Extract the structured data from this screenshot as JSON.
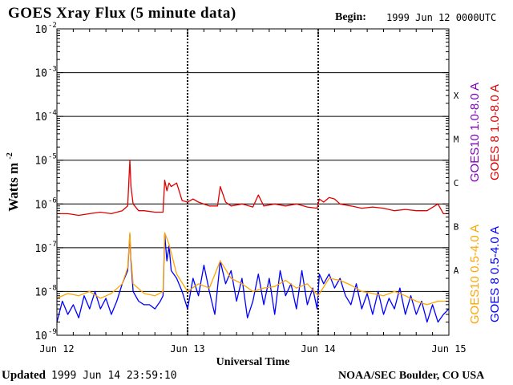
{
  "header": {
    "title": "GOES Xray Flux (5 minute data)",
    "begin_label": "Begin:",
    "begin_value": "1999 Jun 12 0000UTC"
  },
  "footer": {
    "updated_label": "Updated",
    "updated_value": "1999 Jun 14 23:59:10",
    "credit": "NOAA/SEC Boulder, CO USA"
  },
  "chart_data": {
    "type": "line",
    "title": "GOES Xray Flux (5 minute data)",
    "xlabel": "Universal Time",
    "ylabel": "Watts m",
    "ylabel_superscript": "-2",
    "yscale": "log",
    "ylim": [
      1e-09,
      0.01
    ],
    "xlim": [
      0,
      72
    ],
    "x_unit": "hours since 1999 Jun 12 00:00 UTC",
    "x_ticks": [
      {
        "x": 0,
        "label": "Jun 12"
      },
      {
        "x": 24,
        "label": "Jun 13"
      },
      {
        "x": 48,
        "label": "Jun 14"
      },
      {
        "x": 72,
        "label": "Jun 15"
      }
    ],
    "y_ticks": [
      {
        "exp": -9,
        "base": "10",
        "sup": "-9"
      },
      {
        "exp": -8,
        "base": "10",
        "sup": "-8"
      },
      {
        "exp": -7,
        "base": "10",
        "sup": "-7"
      },
      {
        "exp": -6,
        "base": "10",
        "sup": "-6"
      },
      {
        "exp": -5,
        "base": "10",
        "sup": "-5"
      },
      {
        "exp": -4,
        "base": "10",
        "sup": "-4"
      },
      {
        "exp": -3,
        "base": "10",
        "sup": "-3"
      },
      {
        "exp": -2,
        "base": "10",
        "sup": "-2"
      }
    ],
    "flare_classes": [
      {
        "label": "A",
        "exp": -7.5
      },
      {
        "label": "B",
        "exp": -6.5
      },
      {
        "label": "C",
        "exp": -5.5
      },
      {
        "label": "M",
        "exp": -4.5
      },
      {
        "label": "X",
        "exp": -3.5
      }
    ],
    "gridlines_exp": [
      -8,
      -7,
      -6,
      -5,
      -4,
      -3
    ],
    "series": [
      {
        "name": "GOES 8 1.0-8.0 A",
        "color": "#e00000",
        "x": [
          0,
          2,
          4,
          6,
          8,
          10,
          12,
          13,
          13.4,
          13.6,
          14,
          15,
          16,
          18,
          19.5,
          19.8,
          20.2,
          20.6,
          21,
          22,
          23,
          24,
          25,
          26,
          28,
          29.5,
          30,
          31,
          32,
          34,
          36,
          37,
          38,
          40,
          42,
          44,
          46,
          47.8,
          48.2,
          49,
          50,
          51,
          52,
          54,
          56,
          58,
          60,
          62,
          64,
          66,
          68,
          70,
          71,
          72
        ],
        "y": [
          6e-07,
          6e-07,
          5.5e-07,
          6e-07,
          6.5e-07,
          6e-07,
          7e-07,
          9e-07,
          1e-05,
          2.5e-06,
          1e-06,
          7e-07,
          7e-07,
          6.5e-07,
          6.5e-07,
          3.5e-06,
          2e-06,
          3e-06,
          2.5e-06,
          3e-06,
          1.2e-06,
          1.1e-06,
          1.3e-06,
          1.1e-06,
          9e-07,
          9e-07,
          2.5e-06,
          1.1e-06,
          9e-07,
          1e-06,
          8.5e-07,
          1.6e-06,
          9e-07,
          1e-06,
          9e-07,
          1e-06,
          8.5e-07,
          8e-07,
          1.3e-06,
          1.1e-06,
          1.4e-06,
          1.3e-06,
          1e-06,
          9e-07,
          8e-07,
          8.5e-07,
          8e-07,
          7e-07,
          7.5e-07,
          7e-07,
          7e-07,
          1e-06,
          6e-07,
          6e-07
        ]
      },
      {
        "name": "GOES10 1.0-8.0 A",
        "color": "#8000c0",
        "x": [],
        "y": []
      },
      {
        "name": "GOES 8 0.5-4.0 A",
        "color": "#0000ff",
        "x": [
          0,
          1,
          2,
          3,
          4,
          5,
          6,
          7,
          8,
          9,
          10,
          11,
          12,
          13,
          13.4,
          13.6,
          14,
          15,
          16,
          17,
          18,
          19,
          19.5,
          19.8,
          20.2,
          20.6,
          21,
          22,
          23,
          24,
          25,
          26,
          27,
          28,
          29,
          30,
          31,
          32,
          33,
          34,
          35,
          36,
          37,
          38,
          39,
          40,
          41,
          42,
          43,
          44,
          45,
          46,
          47,
          47.8,
          48.2,
          49,
          50,
          51,
          52,
          53,
          54,
          55,
          56,
          57,
          58,
          59,
          60,
          61,
          62,
          63,
          64,
          65,
          66,
          67,
          68,
          69,
          70,
          71,
          72
        ],
        "y": [
          2e-09,
          6e-09,
          3e-09,
          5e-09,
          2.5e-09,
          8e-09,
          4e-09,
          1e-08,
          4e-09,
          7e-09,
          3e-09,
          6e-09,
          1.5e-08,
          3e-08,
          2e-07,
          5e-08,
          1e-08,
          6e-09,
          5e-09,
          5e-09,
          4e-09,
          6e-09,
          8e-09,
          2e-07,
          5e-08,
          1.1e-07,
          3e-08,
          2e-08,
          1e-08,
          4e-09,
          2e-08,
          8e-09,
          4e-08,
          1e-08,
          3e-09,
          5e-08,
          1.5e-08,
          3e-08,
          6e-09,
          2e-08,
          2.5e-09,
          6e-09,
          2.5e-08,
          5e-09,
          2e-08,
          3e-09,
          3e-08,
          8e-09,
          1.5e-08,
          4e-09,
          3e-08,
          5e-09,
          1.2e-08,
          4e-09,
          2.5e-08,
          1.5e-08,
          2.5e-08,
          1.2e-08,
          2e-08,
          8e-09,
          5e-09,
          1.5e-08,
          4e-09,
          9e-09,
          3e-09,
          1e-08,
          3e-09,
          7e-09,
          4e-09,
          1.2e-08,
          3e-09,
          8e-09,
          3e-09,
          6e-09,
          2e-09,
          5e-09,
          2e-09,
          3e-09,
          4e-09
        ]
      },
      {
        "name": "GOES10 0.5-4.0 A",
        "color": "#ffa500",
        "x": [
          0,
          2,
          4,
          6,
          8,
          10,
          12,
          13,
          13.4,
          13.6,
          14,
          16,
          18,
          19.5,
          19.8,
          20.6,
          22,
          24,
          26,
          28,
          30,
          32,
          34,
          36,
          38,
          40,
          42,
          44,
          46,
          48,
          50,
          52,
          54,
          56,
          58,
          60,
          62,
          64,
          66,
          68,
          70,
          72
        ],
        "y": [
          7e-09,
          9e-09,
          8e-09,
          1e-08,
          7e-09,
          9e-09,
          1.5e-08,
          3.5e-08,
          2.2e-07,
          6e-08,
          1.5e-08,
          9e-09,
          8e-09,
          1e-08,
          2.2e-07,
          1.2e-07,
          2.5e-08,
          1e-08,
          1.5e-08,
          1.2e-08,
          5e-08,
          2e-08,
          1.5e-08,
          1e-08,
          1.2e-08,
          1.3e-08,
          1.8e-08,
          1.2e-08,
          1.5e-08,
          8e-09,
          2e-08,
          1.8e-08,
          1.4e-08,
          1e-08,
          9e-09,
          8e-09,
          1e-08,
          8e-09,
          6e-09,
          5e-09,
          6e-09,
          6e-09
        ]
      }
    ]
  }
}
